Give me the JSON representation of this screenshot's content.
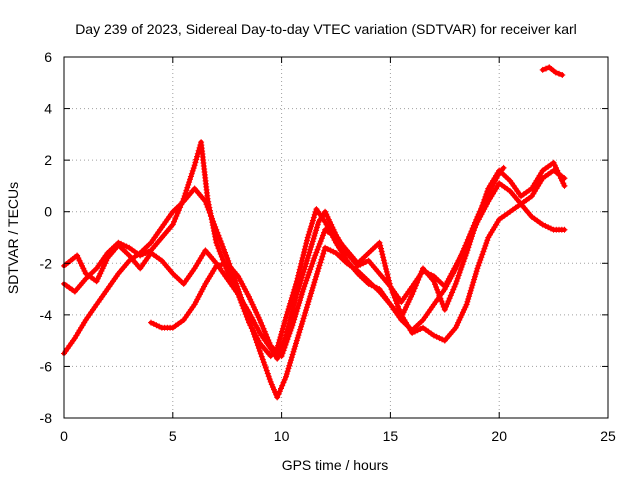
{
  "chart_data": {
    "type": "scatter",
    "title": "Day 239 of 2023, Sidereal Day-to-day VTEC variation (SDTVAR) for receiver karl",
    "xlabel": "GPS time / hours",
    "ylabel": "SDTVAR / TECUs",
    "xlim": [
      0,
      25
    ],
    "ylim": [
      -8,
      6
    ],
    "xticks": [
      0,
      5,
      10,
      15,
      20,
      25
    ],
    "yticks": [
      -8,
      -6,
      -4,
      -2,
      0,
      2,
      4,
      6
    ],
    "grid": true,
    "marker": "plus",
    "color": "#ff0000",
    "series": [
      {
        "x": [
          0.0,
          0.5,
          1.0,
          1.5,
          2.0,
          2.5,
          3.0,
          3.5,
          4.0,
          4.5,
          5.0,
          5.5,
          6.0,
          6.5,
          7.0,
          7.5,
          8.0,
          8.5,
          9.0,
          9.5,
          9.8,
          10.2,
          10.7,
          11.2,
          11.7,
          12.0,
          12.5,
          13.0,
          13.5,
          14.0,
          14.5,
          15.0,
          15.5,
          16.0,
          16.5,
          17.0,
          17.5,
          18.0,
          18.5,
          19.0,
          19.5,
          20.0,
          20.2
        ],
        "y": [
          -5.5,
          -4.9,
          -4.2,
          -3.6,
          -3.0,
          -2.4,
          -1.9,
          -1.6,
          -1.2,
          -0.6,
          0.0,
          0.4,
          0.9,
          0.4,
          -0.7,
          -1.8,
          -3.0,
          -4.2,
          -5.4,
          -6.6,
          -7.2,
          -6.4,
          -5.0,
          -3.6,
          -2.2,
          -1.4,
          -1.6,
          -2.0,
          -2.3,
          -2.7,
          -3.1,
          -3.6,
          -4.2,
          -4.6,
          -4.2,
          -3.6,
          -3.0,
          -2.2,
          -1.2,
          -0.2,
          0.7,
          1.5,
          1.7
        ]
      },
      {
        "x": [
          0.0,
          0.5,
          1.0,
          1.5,
          2.0,
          2.5,
          3.0,
          3.5,
          4.0,
          4.5,
          5.0,
          5.5,
          6.0,
          6.3,
          6.6,
          7.0,
          7.5,
          8.0,
          8.5,
          9.0,
          9.5,
          9.8,
          10.2,
          10.7,
          11.2,
          11.6,
          12.0,
          12.5,
          13.0,
          13.5,
          14.0,
          14.5,
          15.0,
          15.5,
          16.0,
          16.5,
          17.0,
          17.5,
          18.0,
          18.5,
          19.0,
          19.5,
          20.0,
          20.5,
          21.0,
          21.5,
          22.0,
          22.5,
          23.0
        ],
        "y": [
          -2.8,
          -3.1,
          -2.6,
          -2.2,
          -1.6,
          -1.2,
          -1.4,
          -1.7,
          -1.5,
          -1.0,
          -0.5,
          0.5,
          1.8,
          2.7,
          0.5,
          -1.2,
          -2.3,
          -3.2,
          -4.3,
          -5.1,
          -5.6,
          -5.3,
          -4.1,
          -2.7,
          -1.0,
          0.1,
          -0.4,
          -1.2,
          -1.9,
          -2.4,
          -2.8,
          -3.0,
          -3.6,
          -4.1,
          -3.2,
          -2.2,
          -2.7,
          -3.8,
          -2.8,
          -1.6,
          -0.3,
          0.9,
          1.6,
          1.2,
          0.6,
          0.9,
          1.6,
          1.9,
          1.0
        ]
      },
      {
        "x": [
          0.0,
          0.3,
          0.6,
          1.0,
          1.5,
          2.0,
          2.5,
          3.0,
          3.5,
          4.0,
          4.5,
          5.0,
          5.5,
          6.0,
          6.5,
          7.0,
          7.5,
          8.0,
          8.5,
          9.0,
          9.5,
          9.8,
          10.2,
          10.7,
          11.2,
          11.7,
          12.0,
          12.5,
          13.0,
          13.5,
          14.0,
          14.5,
          15.0,
          15.5,
          16.0,
          16.5,
          17.0,
          17.5,
          18.0,
          18.5,
          19.0,
          19.5,
          20.0,
          20.5,
          21.0,
          21.5,
          22.0,
          22.5,
          23.0
        ],
        "y": [
          -2.1,
          -1.9,
          -1.7,
          -2.4,
          -2.7,
          -1.8,
          -1.3,
          -1.7,
          -2.2,
          -1.6,
          -1.9,
          -2.4,
          -2.8,
          -2.2,
          -1.5,
          -2.0,
          -2.6,
          -3.2,
          -3.9,
          -4.7,
          -5.3,
          -5.7,
          -4.8,
          -3.2,
          -1.8,
          -0.4,
          0.0,
          -0.9,
          -1.6,
          -2.1,
          -1.9,
          -2.4,
          -2.9,
          -3.5,
          -2.9,
          -2.3,
          -2.5,
          -2.9,
          -2.1,
          -1.3,
          -0.4,
          0.4,
          1.1,
          0.8,
          0.3,
          0.6,
          1.3,
          1.6,
          1.3
        ]
      },
      {
        "x": [
          4.0,
          4.5,
          5.0,
          5.5,
          6.0,
          6.5,
          7.0,
          7.5,
          8.0,
          8.5,
          9.0,
          9.5,
          10.0,
          10.5,
          11.0,
          11.5,
          12.0,
          12.5,
          13.0,
          13.5,
          14.0,
          14.5,
          15.0,
          15.5,
          16.0,
          16.5,
          17.0,
          17.5,
          18.0,
          18.5,
          19.0,
          19.5,
          20.0,
          20.5,
          21.0,
          21.5,
          22.0,
          22.5,
          23.0
        ],
        "y": [
          -4.3,
          -4.5,
          -4.5,
          -4.2,
          -3.6,
          -2.8,
          -2.1,
          -2.0,
          -2.5,
          -3.3,
          -4.2,
          -5.2,
          -5.6,
          -4.4,
          -3.0,
          -1.8,
          -0.7,
          -1.0,
          -1.5,
          -2.0,
          -1.6,
          -1.2,
          -2.9,
          -4.0,
          -4.7,
          -4.5,
          -4.8,
          -5.0,
          -4.5,
          -3.6,
          -2.2,
          -1.0,
          -0.3,
          0.0,
          0.3,
          -0.2,
          -0.5,
          -0.7,
          -0.7
        ]
      },
      {
        "x": [
          22.0,
          22.3,
          22.6,
          22.9
        ],
        "y": [
          5.5,
          5.6,
          5.4,
          5.3
        ]
      }
    ]
  }
}
